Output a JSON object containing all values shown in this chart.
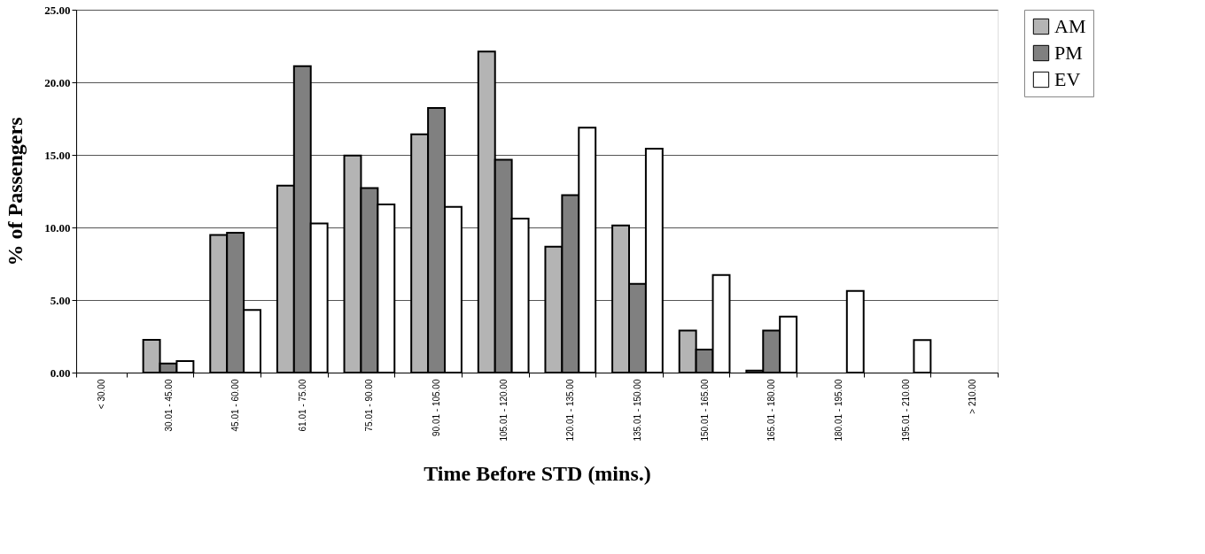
{
  "chart_data": {
    "type": "bar",
    "xlabel": "Time Before STD (mins.)",
    "ylabel": "% of Passengers",
    "categories": [
      "< 30.00",
      "30.01 - 45.00",
      "45.01 - 60.00",
      "61.01 - 75.00",
      "75.01 - 90.00",
      "90.01 - 105.00",
      "105.01 - 120.00",
      "120.01 - 135.00",
      "135.01 - 150.00",
      "150.01 - 165.00",
      "165.01 - 180.00",
      "180.01 - 195.00",
      "195.01 - 210.00",
      "> 210.00"
    ],
    "series": [
      {
        "name": "AM",
        "color": "#b4b4b4",
        "values": [
          null,
          2.25,
          9.48,
          12.88,
          14.96,
          16.42,
          22.12,
          8.67,
          10.13,
          2.9,
          0.13,
          null,
          null,
          null
        ]
      },
      {
        "name": "PM",
        "color": "#808080",
        "values": [
          null,
          0.63,
          9.63,
          21.11,
          12.71,
          18.23,
          14.67,
          12.22,
          6.12,
          1.59,
          2.9,
          null,
          null,
          null
        ]
      },
      {
        "name": "EV",
        "color": "#ffffff",
        "values": [
          null,
          0.79,
          4.32,
          10.28,
          11.59,
          11.42,
          10.61,
          16.88,
          15.42,
          6.73,
          3.86,
          5.62,
          2.24,
          null
        ]
      }
    ],
    "ylim": [
      0,
      25
    ],
    "yticks": [
      {
        "value": 0,
        "label": "0.00"
      },
      {
        "value": 5,
        "label": "5.00"
      },
      {
        "value": 10,
        "label": "10.00"
      },
      {
        "value": 15,
        "label": "15.00"
      },
      {
        "value": 20,
        "label": "20.00"
      },
      {
        "value": 25,
        "label": "25.00"
      }
    ],
    "grid": "y",
    "legend": "right"
  }
}
